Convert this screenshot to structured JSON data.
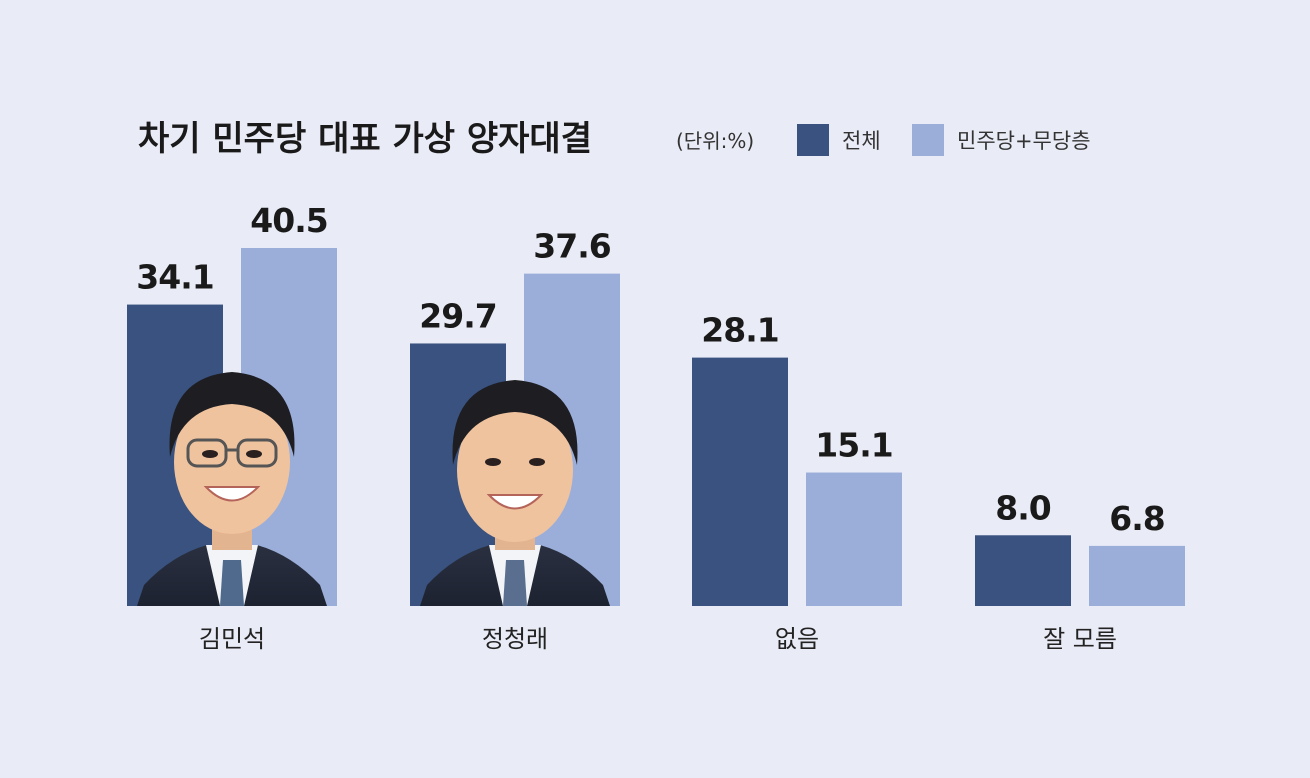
{
  "chart_data": {
    "type": "bar",
    "title": "차기 민주당 대표 가상 양자대결",
    "unit_note": "(단위:%)",
    "categories": [
      "김민석",
      "정청래",
      "없음",
      "잘 모름"
    ],
    "series": [
      {
        "name": "전체",
        "values": [
          34.1,
          29.7,
          28.1,
          8.0
        ],
        "labels": [
          "34.1",
          "29.7",
          "28.1",
          "8.0"
        ],
        "color": "#39527f"
      },
      {
        "name": "민주당+무당층",
        "values": [
          40.5,
          37.6,
          15.1,
          6.8
        ],
        "labels": [
          "40.5",
          "37.6",
          "15.1",
          "6.8"
        ],
        "color": "#9baed9"
      }
    ],
    "ylim": [
      0,
      40.5
    ],
    "legend_position": "top-right",
    "grid": false,
    "photo_overlays": [
      "김민석",
      "정청래"
    ]
  }
}
